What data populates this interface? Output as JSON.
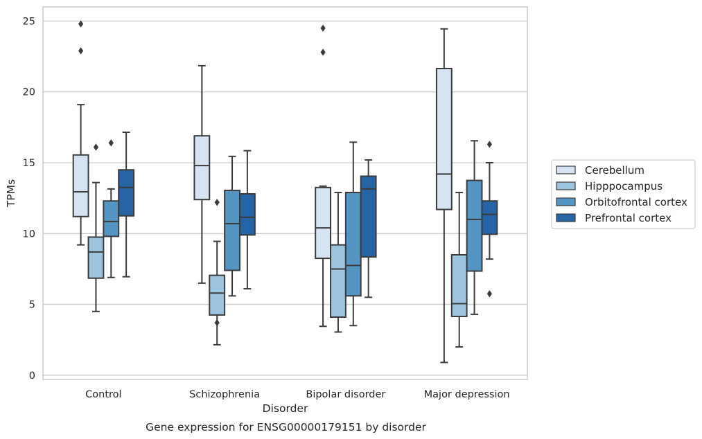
{
  "chart_data": {
    "type": "box",
    "title": "",
    "caption": "Gene expression for ENSG00000179151 by disorder",
    "xlabel": "Disorder",
    "ylabel": "TPMs",
    "ylim": [
      -0.3,
      26
    ],
    "yticks": [
      0,
      5,
      10,
      15,
      20,
      25
    ],
    "grid": "horizontal",
    "legend_position": "right",
    "categories": [
      "Control",
      "Schizophrenia",
      "Bipolar disorder",
      "Major depression"
    ],
    "series": [
      {
        "name": "Cerebellum",
        "color": "#d5e3f2",
        "boxes": [
          {
            "min": 9.2,
            "q1": 11.2,
            "median": 12.95,
            "q3": 15.55,
            "max": 19.1,
            "outliers": [
              22.9,
              24.8
            ]
          },
          {
            "min": 6.5,
            "q1": 12.4,
            "median": 14.8,
            "q3": 16.9,
            "max": 21.85,
            "outliers": []
          },
          {
            "min": 3.45,
            "q1": 8.25,
            "median": 10.4,
            "q3": 13.25,
            "max": 13.35,
            "outliers": [
              22.8,
              24.5
            ]
          },
          {
            "min": 0.9,
            "q1": 11.7,
            "median": 14.2,
            "q3": 21.65,
            "max": 24.45,
            "outliers": []
          }
        ]
      },
      {
        "name": "Hipppocampus",
        "color": "#9cc4de",
        "boxes": [
          {
            "min": 4.5,
            "q1": 6.85,
            "median": 8.7,
            "q3": 9.75,
            "max": 13.6,
            "outliers": [
              16.1
            ]
          },
          {
            "min": 2.15,
            "q1": 4.25,
            "median": 5.8,
            "q3": 7.05,
            "max": 9.45,
            "outliers": [
              3.7,
              12.2
            ]
          },
          {
            "min": 3.05,
            "q1": 4.1,
            "median": 7.5,
            "q3": 9.2,
            "max": 12.9,
            "outliers": []
          },
          {
            "min": 2.0,
            "q1": 4.15,
            "median": 5.05,
            "q3": 8.5,
            "max": 12.9,
            "outliers": []
          }
        ]
      },
      {
        "name": "Orbitofrontal cortex",
        "color": "#5595c3",
        "boxes": [
          {
            "min": 6.9,
            "q1": 9.8,
            "median": 10.85,
            "q3": 12.3,
            "max": 13.15,
            "outliers": [
              16.4
            ]
          },
          {
            "min": 5.6,
            "q1": 7.4,
            "median": 10.7,
            "q3": 13.05,
            "max": 15.45,
            "outliers": []
          },
          {
            "min": 3.5,
            "q1": 5.6,
            "median": 7.75,
            "q3": 12.9,
            "max": 16.45,
            "outliers": []
          },
          {
            "min": 4.3,
            "q1": 7.35,
            "median": 11.0,
            "q3": 13.75,
            "max": 16.55,
            "outliers": []
          }
        ]
      },
      {
        "name": "Prefrontal cortex",
        "color": "#2664a6",
        "boxes": [
          {
            "min": 6.95,
            "q1": 11.25,
            "median": 13.25,
            "q3": 14.5,
            "max": 17.15,
            "outliers": []
          },
          {
            "min": 6.1,
            "q1": 9.9,
            "median": 11.15,
            "q3": 12.8,
            "max": 15.85,
            "outliers": []
          },
          {
            "min": 5.5,
            "q1": 8.35,
            "median": 13.15,
            "q3": 14.05,
            "max": 15.2,
            "outliers": []
          },
          {
            "min": 8.2,
            "q1": 9.95,
            "median": 11.35,
            "q3": 12.3,
            "max": 15.0,
            "outliers": [
              5.75,
              16.3
            ]
          }
        ]
      }
    ]
  }
}
